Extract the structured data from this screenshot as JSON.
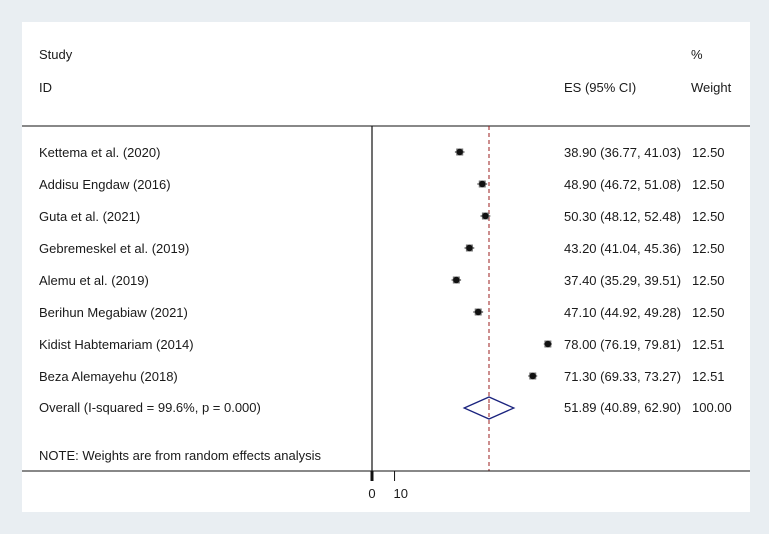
{
  "chart_data": {
    "type": "forest",
    "header": {
      "study_line1": "Study",
      "study_line2": "ID",
      "es_label": "ES (95% CI)",
      "weight_line1": "%",
      "weight_line2": "Weight"
    },
    "studies": [
      {
        "label": "Kettema et al. (2020)",
        "es": 38.9,
        "lo": 36.77,
        "hi": 41.03,
        "ci_text": "38.90 (36.77, 41.03)",
        "weight": "12.50"
      },
      {
        "label": "Addisu Engdaw (2016)",
        "es": 48.9,
        "lo": 46.72,
        "hi": 51.08,
        "ci_text": "48.90 (46.72, 51.08)",
        "weight": "12.50"
      },
      {
        "label": "Guta et al. (2021)",
        "es": 50.3,
        "lo": 48.12,
        "hi": 52.48,
        "ci_text": "50.30 (48.12, 52.48)",
        "weight": "12.50"
      },
      {
        "label": "Gebremeskel et al. (2019)",
        "es": 43.2,
        "lo": 41.04,
        "hi": 45.36,
        "ci_text": "43.20 (41.04, 45.36)",
        "weight": "12.50"
      },
      {
        "label": "Alemu et al. (2019)",
        "es": 37.4,
        "lo": 35.29,
        "hi": 39.51,
        "ci_text": "37.40 (35.29, 39.51)",
        "weight": "12.50"
      },
      {
        "label": "Berihun Megabiaw (2021)",
        "es": 47.1,
        "lo": 44.92,
        "hi": 49.28,
        "ci_text": "47.10 (44.92, 49.28)",
        "weight": "12.50"
      },
      {
        "label": "Kidist Habtemariam (2014)",
        "es": 78.0,
        "lo": 76.19,
        "hi": 79.81,
        "ci_text": "78.00 (76.19, 79.81)",
        "weight": "12.51"
      },
      {
        "label": "Beza Alemayehu (2018)",
        "es": 71.3,
        "lo": 69.33,
        "hi": 73.27,
        "ci_text": "71.30 (69.33, 73.27)",
        "weight": "12.51"
      }
    ],
    "overall": {
      "label": "Overall  (I-squared = 99.6%, p = 0.000)",
      "es": 51.89,
      "lo": 40.89,
      "hi": 62.9,
      "ci_text": "51.89 (40.89, 62.90)",
      "weight": "100.00"
    },
    "note": "NOTE: Weights are from random effects analysis",
    "x_ticks": [
      0,
      10
    ],
    "x_tick_labels": [
      "0",
      "10"
    ],
    "null_line": 0,
    "colors": {
      "marker": "#111111",
      "diamond": "#1a237e",
      "overall_line": "#9b1c1c",
      "axis": "#111111"
    }
  }
}
